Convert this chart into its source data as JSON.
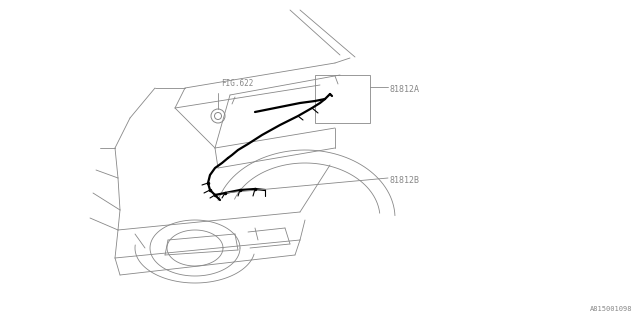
{
  "bg_color": "#ffffff",
  "line_color": "#888888",
  "dark_line_color": "#000000",
  "label_color": "#888888",
  "fig_ref": "FIG.622",
  "part_a": "81812A",
  "part_b": "81812B",
  "part_num": "A815001098"
}
